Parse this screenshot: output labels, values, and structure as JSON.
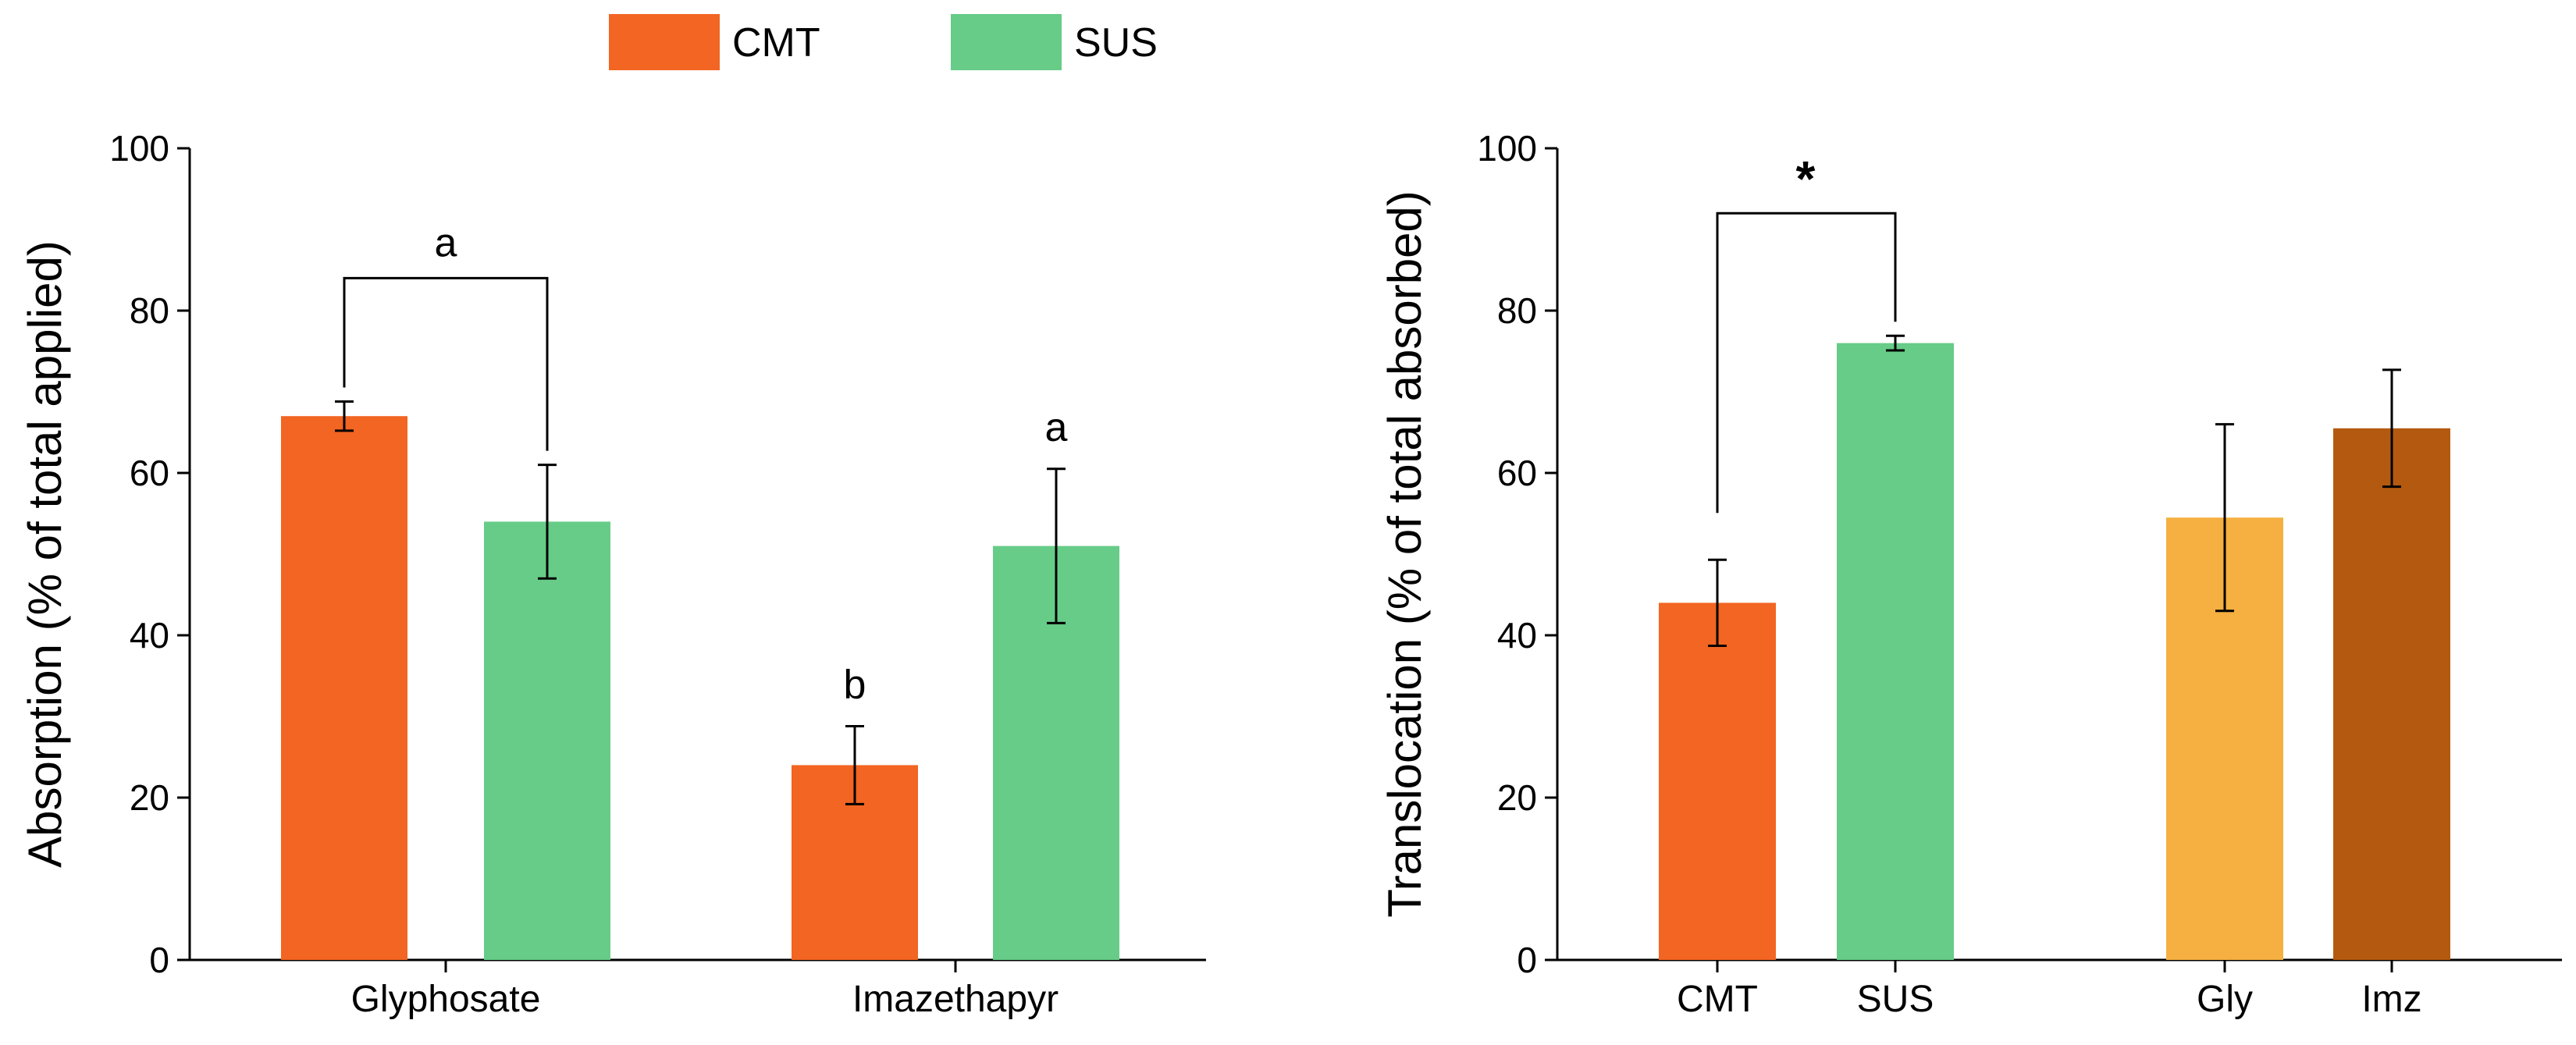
{
  "legend": {
    "items": [
      {
        "label": "CMT",
        "color": "#f26522"
      },
      {
        "label": "SUS",
        "color": "#66cc88"
      }
    ]
  },
  "chart_data": [
    {
      "type": "bar",
      "ylabel": "Absorption (% of total applied)",
      "xlabel": "",
      "ylim": [
        0,
        100
      ],
      "yticks": [
        0,
        20,
        40,
        60,
        80,
        100
      ],
      "categories": [
        "Glyphosate",
        "Imazethapyr"
      ],
      "series": [
        {
          "name": "CMT",
          "color": "#f26522",
          "values": [
            67,
            24
          ],
          "errors": [
            1.8,
            4.8
          ]
        },
        {
          "name": "SUS",
          "color": "#66cc88",
          "values": [
            54,
            51
          ],
          "errors": [
            7,
            9.5
          ]
        }
      ],
      "annotations": [
        {
          "text": "a",
          "type": "bracket",
          "category": 0
        },
        {
          "text": "b",
          "type": "bar-label",
          "category": 1,
          "series": 0
        },
        {
          "text": "a",
          "type": "bar-label",
          "category": 1,
          "series": 1
        }
      ]
    },
    {
      "type": "bar",
      "ylabel": "Translocation (% of total absorbed)",
      "xlabel": "",
      "ylim": [
        0,
        100
      ],
      "yticks": [
        0,
        20,
        40,
        60,
        80,
        100
      ],
      "categories": [
        "CMT",
        "SUS",
        "Gly",
        "Imz"
      ],
      "values": [
        44,
        76,
        54.5,
        65.5
      ],
      "errors": [
        5.3,
        0.9,
        11.5,
        7.2
      ],
      "colors": [
        "#f26522",
        "#66cc88",
        "#f5b041",
        "#b35a10"
      ],
      "annotations": [
        {
          "text": "*",
          "type": "bracket",
          "from": 0,
          "to": 1
        }
      ]
    }
  ]
}
